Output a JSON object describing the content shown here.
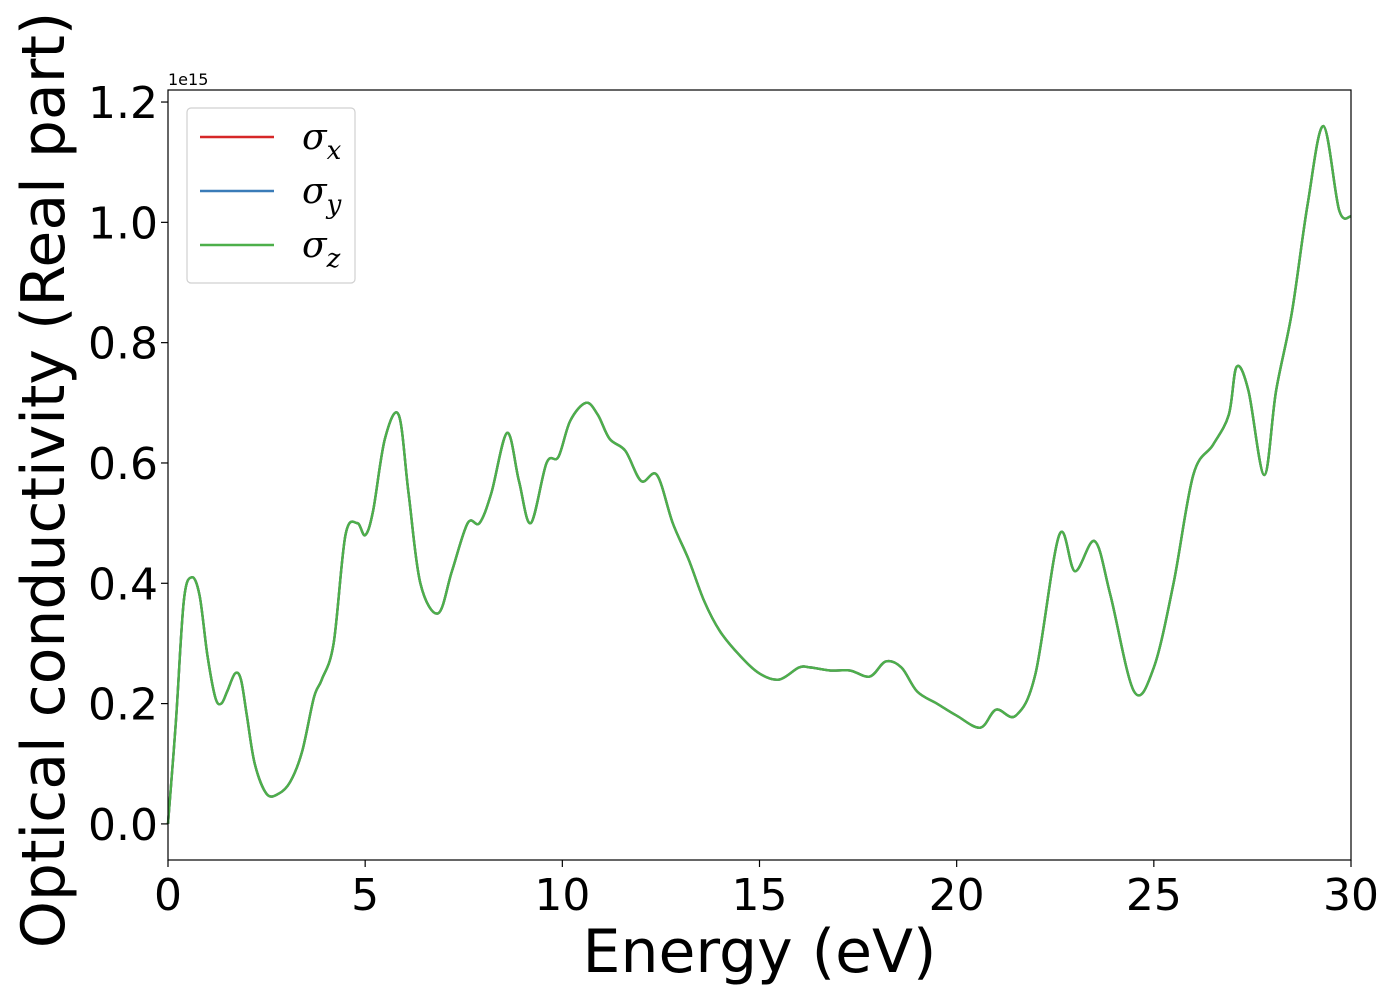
{
  "chart_data": {
    "type": "line",
    "title": "",
    "xlabel": "Energy (eV)",
    "ylabel": "Optical conductivity (Real part)",
    "y_offset_label": "1e15",
    "xlim": [
      0,
      30
    ],
    "ylim": [
      -0.06,
      1.22
    ],
    "xticks": [
      "0",
      "5",
      "10",
      "15",
      "20",
      "25",
      "30"
    ],
    "yticks": [
      "0.0",
      "0.2",
      "0.4",
      "0.6",
      "0.8",
      "1.0",
      "1.2"
    ],
    "grid": false,
    "legend_position": "top-left",
    "x": [
      0,
      0.2,
      0.4,
      0.6,
      0.8,
      1.0,
      1.2,
      1.35,
      1.5,
      1.7,
      1.85,
      2.0,
      2.2,
      2.5,
      2.8,
      3.1,
      3.4,
      3.7,
      3.9,
      4.2,
      4.5,
      4.8,
      5.0,
      5.2,
      5.5,
      5.85,
      6.1,
      6.4,
      6.85,
      7.2,
      7.6,
      7.9,
      8.2,
      8.6,
      8.9,
      9.2,
      9.6,
      9.9,
      10.2,
      10.6,
      10.9,
      11.2,
      11.6,
      12.0,
      12.4,
      12.8,
      13.2,
      13.6,
      14.0,
      14.5,
      15.0,
      15.5,
      16.0,
      16.3,
      16.8,
      17.3,
      17.8,
      18.2,
      18.6,
      19.0,
      19.5,
      20.0,
      20.6,
      21.0,
      21.5,
      22.0,
      22.6,
      23.0,
      23.5,
      23.9,
      24.5,
      25.0,
      25.5,
      26.0,
      26.5,
      26.9,
      27.1,
      27.4,
      27.8,
      28.1,
      28.5,
      28.9,
      29.3,
      29.7,
      30.0
    ],
    "series": [
      {
        "name": "σx",
        "color": "#d62728",
        "values": [
          0.0,
          0.17,
          0.37,
          0.41,
          0.38,
          0.28,
          0.21,
          0.2,
          0.22,
          0.25,
          0.24,
          0.18,
          0.1,
          0.05,
          0.05,
          0.07,
          0.12,
          0.21,
          0.24,
          0.3,
          0.48,
          0.5,
          0.48,
          0.52,
          0.64,
          0.68,
          0.55,
          0.4,
          0.35,
          0.42,
          0.5,
          0.5,
          0.55,
          0.65,
          0.57,
          0.5,
          0.6,
          0.61,
          0.67,
          0.7,
          0.68,
          0.64,
          0.62,
          0.57,
          0.58,
          0.5,
          0.44,
          0.37,
          0.32,
          0.28,
          0.25,
          0.24,
          0.26,
          0.26,
          0.255,
          0.255,
          0.245,
          0.27,
          0.26,
          0.22,
          0.2,
          0.18,
          0.16,
          0.19,
          0.18,
          0.25,
          0.48,
          0.42,
          0.47,
          0.38,
          0.22,
          0.26,
          0.4,
          0.58,
          0.63,
          0.68,
          0.76,
          0.72,
          0.58,
          0.72,
          0.85,
          1.03,
          1.16,
          1.02,
          1.01
        ]
      },
      {
        "name": "σy",
        "color": "#3a7cb8",
        "values": [
          0.0,
          0.17,
          0.37,
          0.41,
          0.38,
          0.28,
          0.21,
          0.2,
          0.22,
          0.25,
          0.24,
          0.18,
          0.1,
          0.05,
          0.05,
          0.07,
          0.12,
          0.21,
          0.24,
          0.3,
          0.48,
          0.5,
          0.48,
          0.52,
          0.64,
          0.68,
          0.55,
          0.4,
          0.35,
          0.42,
          0.5,
          0.5,
          0.55,
          0.65,
          0.57,
          0.5,
          0.6,
          0.61,
          0.67,
          0.7,
          0.68,
          0.64,
          0.62,
          0.57,
          0.58,
          0.5,
          0.44,
          0.37,
          0.32,
          0.28,
          0.25,
          0.24,
          0.26,
          0.26,
          0.255,
          0.255,
          0.245,
          0.27,
          0.26,
          0.22,
          0.2,
          0.18,
          0.16,
          0.19,
          0.18,
          0.25,
          0.48,
          0.42,
          0.47,
          0.38,
          0.22,
          0.26,
          0.4,
          0.58,
          0.63,
          0.68,
          0.76,
          0.72,
          0.58,
          0.72,
          0.85,
          1.03,
          1.16,
          1.02,
          1.01
        ]
      },
      {
        "name": "σz",
        "color": "#4daf4a",
        "values": [
          0.0,
          0.17,
          0.37,
          0.41,
          0.38,
          0.28,
          0.21,
          0.2,
          0.22,
          0.25,
          0.24,
          0.18,
          0.1,
          0.05,
          0.05,
          0.07,
          0.12,
          0.21,
          0.24,
          0.3,
          0.48,
          0.5,
          0.48,
          0.52,
          0.64,
          0.68,
          0.55,
          0.4,
          0.35,
          0.42,
          0.5,
          0.5,
          0.55,
          0.65,
          0.57,
          0.5,
          0.6,
          0.61,
          0.67,
          0.7,
          0.68,
          0.64,
          0.62,
          0.57,
          0.58,
          0.5,
          0.44,
          0.37,
          0.32,
          0.28,
          0.25,
          0.24,
          0.26,
          0.26,
          0.255,
          0.255,
          0.245,
          0.27,
          0.26,
          0.22,
          0.2,
          0.18,
          0.16,
          0.19,
          0.18,
          0.25,
          0.48,
          0.42,
          0.47,
          0.38,
          0.22,
          0.26,
          0.4,
          0.58,
          0.63,
          0.68,
          0.76,
          0.72,
          0.58,
          0.72,
          0.85,
          1.03,
          1.16,
          1.02,
          1.01
        ]
      }
    ],
    "legend": [
      {
        "symbol": "σ",
        "sub": "x",
        "color": "#d62728"
      },
      {
        "symbol": "σ",
        "sub": "y",
        "color": "#3a7cb8"
      },
      {
        "symbol": "σ",
        "sub": "z",
        "color": "#4daf4a"
      }
    ]
  }
}
